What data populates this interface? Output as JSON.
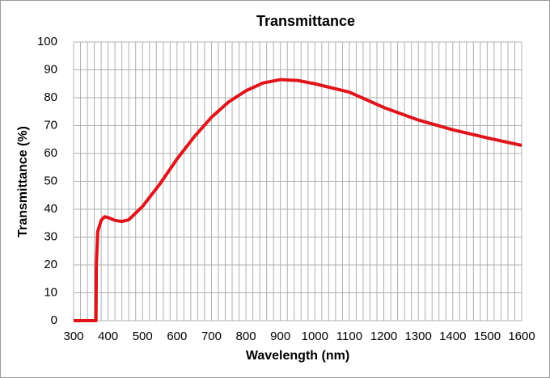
{
  "chart_data": {
    "type": "line",
    "title": "Transmittance",
    "x_label": "Wavelength (nm)",
    "y_label": "Transmittance (%)",
    "x": [
      300,
      365,
      366,
      370,
      380,
      390,
      400,
      420,
      440,
      460,
      500,
      550,
      600,
      650,
      700,
      750,
      800,
      850,
      900,
      950,
      1000,
      1100,
      1200,
      1300,
      1400,
      1500,
      1600
    ],
    "series": [
      {
        "name": "Transmittance",
        "color": "#e0151b",
        "values": [
          0,
          0,
          20,
          32,
          36,
          37.3,
          37,
          36,
          35.6,
          36.2,
          41,
          49,
          58,
          66,
          73,
          78.5,
          82.5,
          85.3,
          86.5,
          86.2,
          85,
          82,
          76.5,
          72,
          68.5,
          65.6,
          62.9
        ]
      }
    ],
    "xlim": [
      300,
      1600
    ],
    "ylim": [
      0,
      100
    ],
    "xticks": [
      300,
      400,
      500,
      600,
      700,
      800,
      900,
      1000,
      1100,
      1200,
      1300,
      1400,
      1500,
      1600
    ],
    "x_minor_ticks": [
      320,
      340,
      360,
      380,
      420,
      440,
      460,
      480,
      520,
      540,
      560,
      580,
      620,
      640,
      660,
      680,
      720,
      740,
      760,
      780,
      820,
      840,
      860,
      880,
      920,
      940,
      960,
      980,
      1020,
      1040,
      1060,
      1080,
      1120,
      1140,
      1160,
      1180,
      1220,
      1240,
      1260,
      1280,
      1320,
      1340,
      1360,
      1380,
      1420,
      1440,
      1460,
      1480,
      1520,
      1540,
      1560,
      1580
    ],
    "yticks": [
      0,
      10,
      20,
      30,
      40,
      50,
      60,
      70,
      80,
      90,
      100
    ],
    "grid": true
  }
}
